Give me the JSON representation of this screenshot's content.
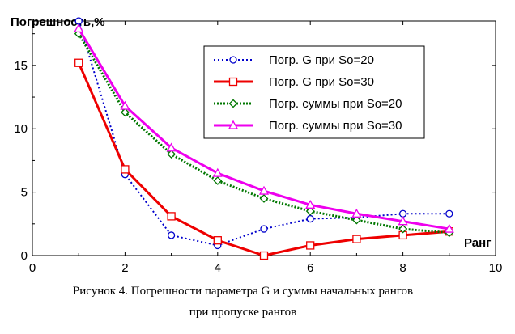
{
  "chart_data": {
    "type": "line",
    "ylabel": "Погрешность,%",
    "xlabel": "Ранг",
    "xlim": [
      0,
      10
    ],
    "ylim": [
      0,
      18.5
    ],
    "xticks": [
      0,
      2,
      4,
      6,
      8,
      10
    ],
    "yticks": [
      0,
      5,
      10,
      15
    ],
    "grid": false,
    "legend_position": "top-right",
    "x": [
      1,
      2,
      3,
      4,
      5,
      6,
      7,
      8,
      9
    ],
    "series": [
      {
        "name": "Погр. G при So=20",
        "values": [
          18.5,
          6.4,
          1.6,
          0.8,
          2.1,
          2.9,
          3.0,
          3.3,
          3.3
        ],
        "color": "#0000cc",
        "dash": "2,3",
        "marker": "circle",
        "width": 2
      },
      {
        "name": "Погр. G при So=30",
        "values": [
          15.2,
          6.8,
          3.1,
          1.2,
          0.0,
          0.8,
          1.3,
          1.6,
          1.9
        ],
        "color": "#ee0000",
        "dash": "",
        "marker": "square",
        "width": 3
      },
      {
        "name": "Погр. суммы при So=20",
        "values": [
          17.5,
          11.3,
          8.0,
          5.9,
          4.5,
          3.5,
          2.8,
          2.1,
          1.8
        ],
        "color": "#007700",
        "dash": "2,2",
        "marker": "diamond",
        "width": 3
      },
      {
        "name": "Погр. суммы при So=30",
        "values": [
          17.9,
          11.8,
          8.5,
          6.5,
          5.1,
          4.0,
          3.3,
          2.7,
          2.1
        ],
        "color": "#ee00ee",
        "dash": "",
        "marker": "triangle",
        "width": 3
      }
    ]
  },
  "caption": {
    "line1": "Рисунок 4. Погрешности параметра G и суммы начальных рангов",
    "line2": "при пропуске рангов"
  }
}
